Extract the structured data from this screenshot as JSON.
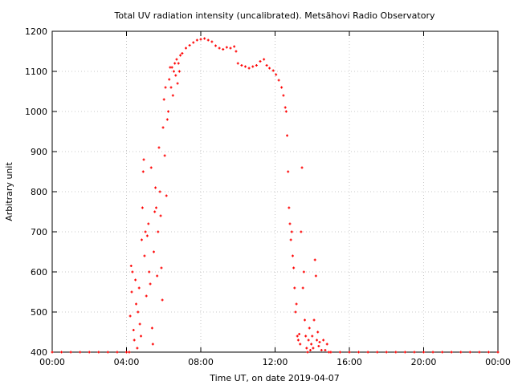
{
  "chart_data": {
    "type": "scatter",
    "title": "Total UV radiation intensity (uncalibrated). Metsähovi Radio Observatory",
    "xlabel": "Time UT, on date 2019-04-07",
    "ylabel": "Arbitrary unit",
    "xlim": [
      0,
      24
    ],
    "ylim": [
      400,
      1200
    ],
    "x_ticks": [
      0,
      4,
      8,
      12,
      16,
      20,
      24
    ],
    "x_tick_labels": [
      "00:00",
      "04:00",
      "08:00",
      "12:00",
      "16:00",
      "20:00",
      "00:00"
    ],
    "y_ticks": [
      400,
      500,
      600,
      700,
      800,
      900,
      1000,
      1100,
      1200
    ],
    "y_tick_labels": [
      "400",
      "500",
      "600",
      "700",
      "800",
      "900",
      "1000",
      "1100",
      "1200"
    ],
    "grid": true,
    "legend": "none",
    "series": [
      {
        "color": "#ff0000",
        "marker": "plus",
        "points": [
          [
            0.0,
            400
          ],
          [
            0.5,
            400
          ],
          [
            1.0,
            400
          ],
          [
            1.5,
            400
          ],
          [
            2.0,
            400
          ],
          [
            2.5,
            400
          ],
          [
            3.0,
            400
          ],
          [
            3.5,
            400
          ],
          [
            4.0,
            400
          ],
          [
            4.15,
            400
          ],
          [
            4.2,
            490
          ],
          [
            4.25,
            615
          ],
          [
            4.28,
            550
          ],
          [
            4.32,
            600
          ],
          [
            4.38,
            455
          ],
          [
            4.42,
            430
          ],
          [
            4.48,
            580
          ],
          [
            4.52,
            520
          ],
          [
            4.58,
            410
          ],
          [
            4.62,
            500
          ],
          [
            4.68,
            560
          ],
          [
            4.72,
            470
          ],
          [
            4.78,
            440
          ],
          [
            4.82,
            680
          ],
          [
            4.86,
            760
          ],
          [
            4.9,
            850
          ],
          [
            4.93,
            880
          ],
          [
            4.97,
            640
          ],
          [
            5.02,
            700
          ],
          [
            5.07,
            540
          ],
          [
            5.12,
            690
          ],
          [
            5.18,
            720
          ],
          [
            5.22,
            600
          ],
          [
            5.28,
            570
          ],
          [
            5.33,
            860
          ],
          [
            5.38,
            460
          ],
          [
            5.42,
            420
          ],
          [
            5.47,
            650
          ],
          [
            5.52,
            750
          ],
          [
            5.56,
            810
          ],
          [
            5.6,
            760
          ],
          [
            5.65,
            590
          ],
          [
            5.7,
            700
          ],
          [
            5.75,
            910
          ],
          [
            5.8,
            800
          ],
          [
            5.84,
            740
          ],
          [
            5.88,
            610
          ],
          [
            5.93,
            530
          ],
          [
            5.97,
            960
          ],
          [
            6.02,
            1030
          ],
          [
            6.06,
            890
          ],
          [
            6.1,
            1060
          ],
          [
            6.15,
            790
          ],
          [
            6.2,
            980
          ],
          [
            6.25,
            1000
          ],
          [
            6.3,
            1080
          ],
          [
            6.35,
            1110
          ],
          [
            6.4,
            1060
          ],
          [
            6.45,
            1110
          ],
          [
            6.5,
            1040
          ],
          [
            6.55,
            1100
          ],
          [
            6.6,
            1120
          ],
          [
            6.65,
            1090
          ],
          [
            6.7,
            1130
          ],
          [
            6.75,
            1070
          ],
          [
            6.8,
            1120
          ],
          [
            6.85,
            1100
          ],
          [
            6.9,
            1140
          ],
          [
            7.0,
            1145
          ],
          [
            7.2,
            1158
          ],
          [
            7.4,
            1165
          ],
          [
            7.6,
            1172
          ],
          [
            7.8,
            1178
          ],
          [
            8.0,
            1180
          ],
          [
            8.2,
            1182
          ],
          [
            8.4,
            1178
          ],
          [
            8.6,
            1174
          ],
          [
            8.8,
            1164
          ],
          [
            9.0,
            1158
          ],
          [
            9.2,
            1155
          ],
          [
            9.4,
            1160
          ],
          [
            9.6,
            1158
          ],
          [
            9.8,
            1162
          ],
          [
            9.9,
            1150
          ],
          [
            10.0,
            1120
          ],
          [
            10.2,
            1115
          ],
          [
            10.4,
            1112
          ],
          [
            10.6,
            1108
          ],
          [
            10.8,
            1112
          ],
          [
            11.0,
            1115
          ],
          [
            11.2,
            1125
          ],
          [
            11.4,
            1130
          ],
          [
            11.55,
            1115
          ],
          [
            11.7,
            1108
          ],
          [
            11.9,
            1102
          ],
          [
            12.05,
            1092
          ],
          [
            12.2,
            1078
          ],
          [
            12.35,
            1060
          ],
          [
            12.45,
            1040
          ],
          [
            12.55,
            1010
          ],
          [
            12.6,
            1000
          ],
          [
            12.65,
            940
          ],
          [
            12.7,
            850
          ],
          [
            12.75,
            760
          ],
          [
            12.8,
            720
          ],
          [
            12.85,
            680
          ],
          [
            12.9,
            700
          ],
          [
            12.95,
            640
          ],
          [
            13.0,
            610
          ],
          [
            13.05,
            560
          ],
          [
            13.1,
            500
          ],
          [
            13.15,
            520
          ],
          [
            13.2,
            440
          ],
          [
            13.25,
            430
          ],
          [
            13.3,
            445
          ],
          [
            13.35,
            420
          ],
          [
            13.4,
            700
          ],
          [
            13.45,
            860
          ],
          [
            13.5,
            560
          ],
          [
            13.55,
            600
          ],
          [
            13.6,
            480
          ],
          [
            13.65,
            440
          ],
          [
            13.7,
            410
          ],
          [
            13.75,
            400
          ],
          [
            13.8,
            430
          ],
          [
            13.85,
            460
          ],
          [
            13.9,
            405
          ],
          [
            13.95,
            420
          ],
          [
            14.0,
            440
          ],
          [
            14.05,
            410
          ],
          [
            14.1,
            480
          ],
          [
            14.15,
            630
          ],
          [
            14.2,
            590
          ],
          [
            14.25,
            430
          ],
          [
            14.3,
            450
          ],
          [
            14.35,
            415
          ],
          [
            14.4,
            425
          ],
          [
            14.5,
            405
          ],
          [
            14.6,
            430
          ],
          [
            14.7,
            405
          ],
          [
            14.8,
            420
          ],
          [
            14.9,
            400
          ],
          [
            15.0,
            400
          ],
          [
            15.5,
            400
          ],
          [
            16.0,
            400
          ],
          [
            16.5,
            400
          ],
          [
            17.0,
            400
          ],
          [
            17.5,
            400
          ],
          [
            18.0,
            400
          ],
          [
            18.5,
            400
          ],
          [
            19.0,
            400
          ],
          [
            19.5,
            400
          ],
          [
            20.0,
            400
          ],
          [
            20.5,
            400
          ],
          [
            21.0,
            400
          ],
          [
            21.5,
            400
          ],
          [
            22.0,
            400
          ],
          [
            22.5,
            400
          ],
          [
            23.0,
            400
          ],
          [
            23.5,
            400
          ],
          [
            24.0,
            400
          ]
        ]
      }
    ]
  }
}
